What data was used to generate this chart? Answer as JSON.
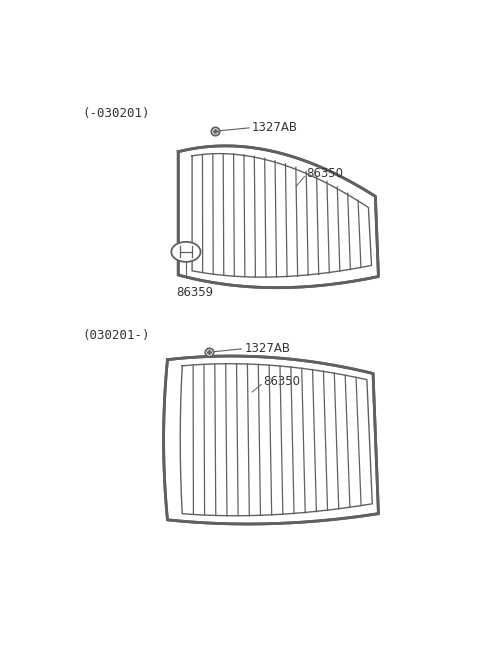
{
  "bg_color": "#ffffff",
  "line_color": "#606060",
  "text_color": "#333333",
  "section1_label": "(-030201)",
  "section2_label": "(030201-)",
  "part_label_grille": "86350",
  "part_label_bolt": "1327AB",
  "part_label_emblem": "86359",
  "figsize": [
    4.8,
    6.55
  ],
  "dpi": 100
}
